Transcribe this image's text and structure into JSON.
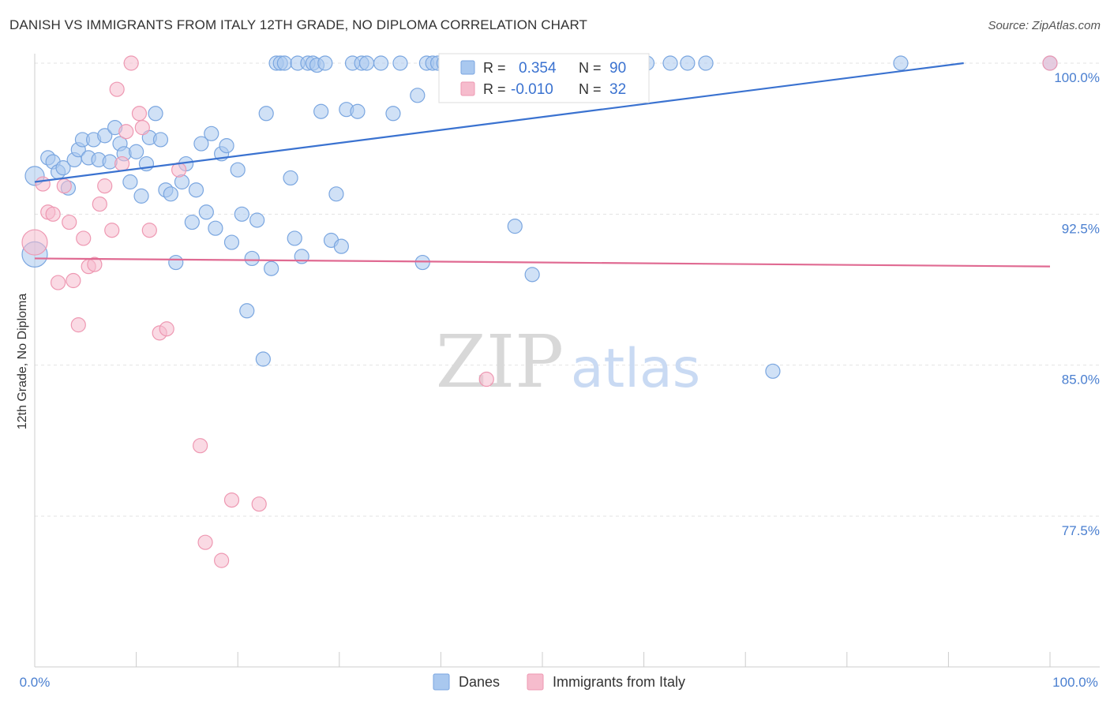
{
  "header": {
    "title": "DANISH VS IMMIGRANTS FROM ITALY 12TH GRADE, NO DIPLOMA CORRELATION CHART",
    "source": "Source: ZipAtlas.com"
  },
  "watermark": {
    "zip": "ZIP",
    "atlas": "atlas"
  },
  "stats_legend": {
    "rows": [
      {
        "r_label": "R =",
        "r_value": "0.354",
        "n_label": "N =",
        "n_value": "90"
      },
      {
        "r_label": "R =",
        "r_value": "-0.010",
        "n_label": "N =",
        "n_value": "32"
      }
    ]
  },
  "colors": {
    "danes_fill": "#a9c8ef",
    "danes_stroke": "#7aa6e0",
    "danes_line": "#3a72d0",
    "italy_fill": "#f6bccd",
    "italy_stroke": "#ee98b2",
    "italy_line": "#e06a92",
    "axis_text": "#4a7fd0",
    "grid": "#e3e3e3"
  },
  "chart_data": {
    "type": "scatter",
    "title": "DANISH VS IMMIGRANTS FROM ITALY 12TH GRADE, NO DIPLOMA CORRELATION CHART",
    "xlabel": "",
    "ylabel": "12th Grade, No Diploma",
    "xlim": [
      0,
      100
    ],
    "ylim": [
      70.5,
      100.8
    ],
    "x_tick_labels": [
      "0.0%",
      "100.0%"
    ],
    "y_ticks": [
      77.5,
      85.0,
      92.5,
      100.0
    ],
    "y_tick_labels": [
      "77.5%",
      "85.0%",
      "92.5%",
      "100.0%"
    ],
    "grid": true,
    "legend_position": "bottom",
    "series": [
      {
        "name": "Danes",
        "R": 0.354,
        "N": 90,
        "trend": {
          "x": [
            0,
            91.5
          ],
          "y": [
            94.1,
            100.0
          ]
        },
        "points": [
          [
            0.0,
            90.5,
            16
          ],
          [
            0.0,
            94.4,
            12
          ],
          [
            1.3,
            95.3,
            9
          ],
          [
            1.8,
            95.1,
            9
          ],
          [
            2.3,
            94.6,
            9
          ],
          [
            2.8,
            94.8,
            9
          ],
          [
            3.3,
            93.8,
            9
          ],
          [
            3.9,
            95.2,
            9
          ],
          [
            4.3,
            95.7,
            9
          ],
          [
            4.7,
            96.2,
            9
          ],
          [
            5.3,
            95.3,
            9
          ],
          [
            5.8,
            96.2,
            9
          ],
          [
            6.3,
            95.2,
            9
          ],
          [
            6.9,
            96.4,
            9
          ],
          [
            7.4,
            95.1,
            9
          ],
          [
            7.9,
            96.8,
            9
          ],
          [
            8.4,
            96.0,
            9
          ],
          [
            8.8,
            95.5,
            9
          ],
          [
            9.4,
            94.1,
            9
          ],
          [
            10.0,
            95.6,
            9
          ],
          [
            10.5,
            93.4,
            9
          ],
          [
            11.0,
            95.0,
            9
          ],
          [
            11.3,
            96.3,
            9
          ],
          [
            11.9,
            97.5,
            9
          ],
          [
            12.4,
            96.2,
            9
          ],
          [
            12.9,
            93.7,
            9
          ],
          [
            13.4,
            93.5,
            9
          ],
          [
            13.9,
            90.1,
            9
          ],
          [
            14.5,
            94.1,
            9
          ],
          [
            14.9,
            95.0,
            9
          ],
          [
            15.5,
            92.1,
            9
          ],
          [
            15.9,
            93.7,
            9
          ],
          [
            16.4,
            96.0,
            9
          ],
          [
            16.9,
            92.6,
            9
          ],
          [
            17.4,
            96.5,
            9
          ],
          [
            17.8,
            91.8,
            9
          ],
          [
            18.4,
            95.5,
            9
          ],
          [
            18.9,
            95.9,
            9
          ],
          [
            19.4,
            91.1,
            9
          ],
          [
            20.0,
            94.7,
            9
          ],
          [
            20.4,
            92.5,
            9
          ],
          [
            20.9,
            87.7,
            9
          ],
          [
            21.4,
            90.3,
            9
          ],
          [
            21.9,
            92.2,
            9
          ],
          [
            22.5,
            85.3,
            9
          ],
          [
            22.8,
            97.5,
            9
          ],
          [
            23.3,
            89.8,
            9
          ],
          [
            23.8,
            100.0,
            9
          ],
          [
            24.2,
            100.0,
            9
          ],
          [
            24.6,
            100.0,
            9
          ],
          [
            25.2,
            94.3,
            9
          ],
          [
            25.6,
            91.3,
            9
          ],
          [
            25.9,
            100.0,
            9
          ],
          [
            26.3,
            90.4,
            9
          ],
          [
            26.9,
            100.0,
            9
          ],
          [
            27.4,
            100.0,
            9
          ],
          [
            27.8,
            99.9,
            9
          ],
          [
            28.2,
            97.6,
            9
          ],
          [
            28.6,
            100.0,
            9
          ],
          [
            29.2,
            91.2,
            9
          ],
          [
            29.7,
            93.5,
            9
          ],
          [
            30.2,
            90.9,
            9
          ],
          [
            30.7,
            97.7,
            9
          ],
          [
            31.3,
            100.0,
            9
          ],
          [
            31.8,
            97.6,
            9
          ],
          [
            32.2,
            100.0,
            9
          ],
          [
            32.7,
            100.0,
            9
          ],
          [
            34.1,
            100.0,
            9
          ],
          [
            35.3,
            97.5,
            9
          ],
          [
            36.0,
            100.0,
            9
          ],
          [
            37.7,
            98.4,
            9
          ],
          [
            38.2,
            90.1,
            9
          ],
          [
            38.6,
            100.0,
            9
          ],
          [
            39.2,
            100.0,
            9
          ],
          [
            39.7,
            100.0,
            9
          ],
          [
            40.3,
            100.0,
            9
          ],
          [
            41.2,
            98.6,
            9
          ],
          [
            42.2,
            100.0,
            9
          ],
          [
            43.1,
            100.0,
            9
          ],
          [
            44.1,
            100.0,
            9
          ],
          [
            47.3,
            91.9,
            9
          ],
          [
            49.0,
            89.5,
            9
          ],
          [
            52.6,
            100.0,
            9
          ],
          [
            54.8,
            100.0,
            9
          ],
          [
            58.6,
            100.0,
            9
          ],
          [
            60.3,
            100.0,
            9
          ],
          [
            62.6,
            100.0,
            9
          ],
          [
            64.3,
            100.0,
            9
          ],
          [
            66.1,
            100.0,
            9
          ],
          [
            72.7,
            84.7,
            9
          ],
          [
            85.3,
            100.0,
            9
          ],
          [
            100.0,
            100.0,
            9
          ]
        ]
      },
      {
        "name": "Immigrants from Italy",
        "R": -0.01,
        "N": 32,
        "trend": {
          "x": [
            0,
            100
          ],
          "y": [
            90.3,
            89.9
          ]
        },
        "points": [
          [
            0.0,
            91.1,
            16
          ],
          [
            0.8,
            94.0,
            9
          ],
          [
            1.3,
            92.6,
            9
          ],
          [
            1.8,
            92.5,
            9
          ],
          [
            2.3,
            89.1,
            9
          ],
          [
            2.9,
            93.9,
            9
          ],
          [
            3.4,
            92.1,
            9
          ],
          [
            3.8,
            89.2,
            9
          ],
          [
            4.3,
            87.0,
            9
          ],
          [
            4.8,
            91.3,
            9
          ],
          [
            5.3,
            89.9,
            9
          ],
          [
            5.9,
            90.0,
            9
          ],
          [
            6.4,
            93.0,
            9
          ],
          [
            6.9,
            93.9,
            9
          ],
          [
            7.6,
            91.7,
            9
          ],
          [
            8.1,
            98.7,
            9
          ],
          [
            8.6,
            95.0,
            9
          ],
          [
            9.0,
            96.6,
            9
          ],
          [
            9.5,
            100.0,
            9
          ],
          [
            10.3,
            97.5,
            9
          ],
          [
            10.6,
            96.8,
            9
          ],
          [
            11.3,
            91.7,
            9
          ],
          [
            12.3,
            86.6,
            9
          ],
          [
            13.0,
            86.8,
            9
          ],
          [
            14.2,
            94.7,
            9
          ],
          [
            16.3,
            81.0,
            9
          ],
          [
            16.8,
            76.2,
            9
          ],
          [
            18.4,
            75.3,
            9
          ],
          [
            19.4,
            78.3,
            9
          ],
          [
            22.1,
            78.1,
            9
          ],
          [
            44.5,
            84.3,
            9
          ],
          [
            100.0,
            100.0,
            9
          ]
        ]
      }
    ]
  }
}
